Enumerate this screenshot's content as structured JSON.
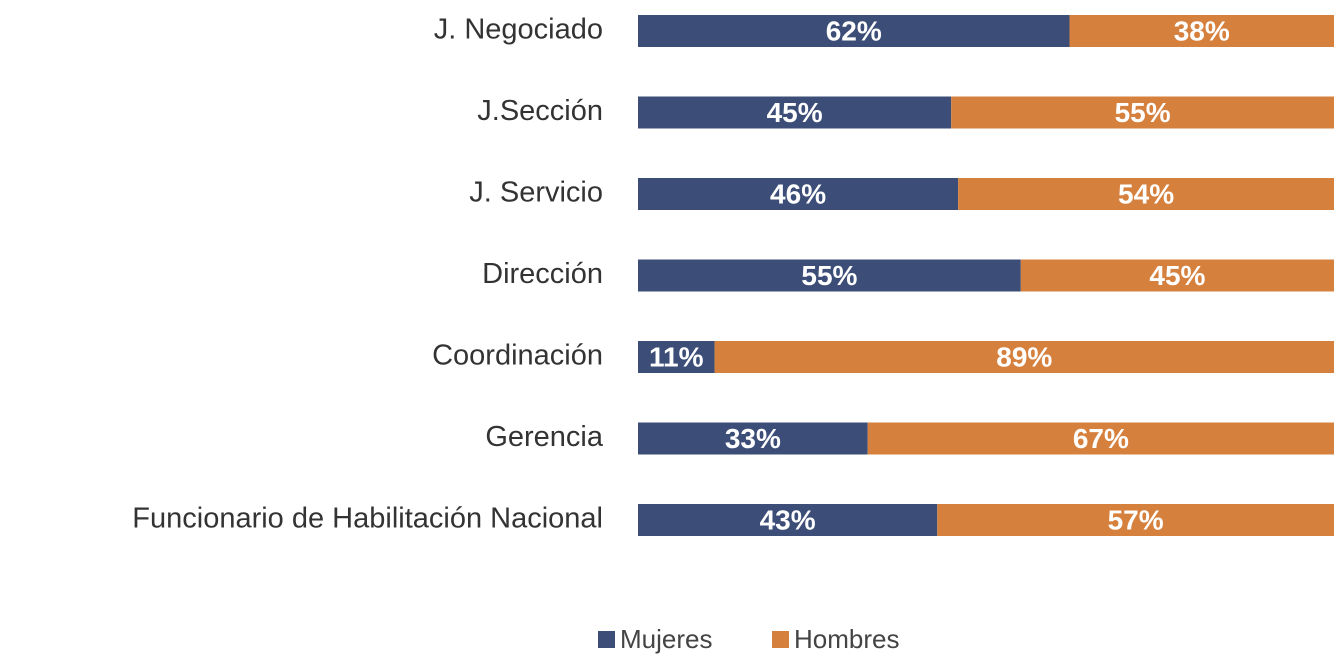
{
  "chart_data": {
    "type": "stacked-hbar",
    "categories": [
      "J. Negociado",
      "J.Sección",
      "J. Servicio",
      "Dirección",
      "Coordinación",
      "Gerencia",
      "Funcionario de Habilitación Nacional"
    ],
    "series": [
      {
        "name": "Mujeres",
        "color": "#3c4e78",
        "values": [
          62,
          45,
          46,
          55,
          11,
          33,
          43
        ],
        "value_labels": [
          "62%",
          "45%",
          "46%",
          "55%",
          "11%",
          "33%",
          "43%"
        ]
      },
      {
        "name": "Hombres",
        "color": "#d6803e",
        "values": [
          38,
          55,
          54,
          45,
          89,
          67,
          57
        ],
        "value_labels": [
          "38%",
          "55%",
          "54%",
          "45%",
          "89%",
          "67%",
          "57%"
        ]
      }
    ],
    "xlim": [
      0,
      100
    ]
  }
}
